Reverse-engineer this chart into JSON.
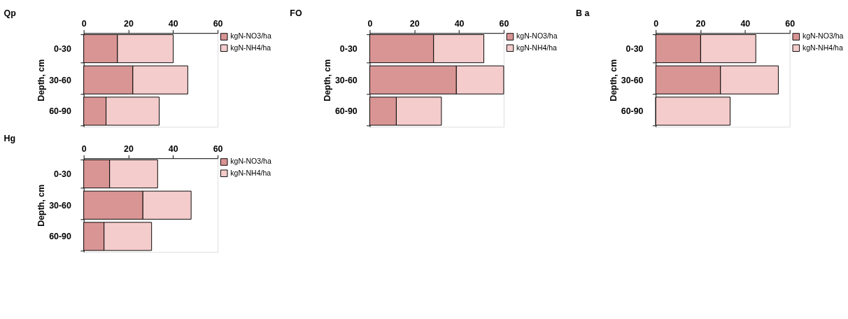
{
  "chart_data": [
    {
      "type": "bar",
      "orientation": "horizontal",
      "stacked": true,
      "title": "Qp",
      "ylabel": "Depth, cm",
      "categories": [
        "0-30",
        "30-60",
        "60-90"
      ],
      "series": [
        {
          "name": "kgN-NO3/ha",
          "color": "#d99594",
          "values": [
            15.1,
            22.0,
            10.0
          ]
        },
        {
          "name": "kgN-NH4/ha",
          "color": "#f4cccb",
          "values": [
            25.0,
            24.6,
            23.8
          ]
        }
      ],
      "xlim": [
        0,
        60
      ],
      "xticks": [
        0,
        20,
        40,
        60
      ],
      "legend": "right",
      "grid": false
    },
    {
      "type": "bar",
      "orientation": "horizontal",
      "stacked": true,
      "title": "FO",
      "ylabel": "Depth, cm",
      "categories": [
        "0-30",
        "30-60",
        "60-90"
      ],
      "series": [
        {
          "name": "kgN-NO3/ha",
          "color": "#d99594",
          "values": [
            28.6,
            38.8,
            11.9
          ]
        },
        {
          "name": "kgN-NH4/ha",
          "color": "#f4cccb",
          "values": [
            22.5,
            21.2,
            20.2
          ]
        }
      ],
      "xlim": [
        0,
        60
      ],
      "xticks": [
        0,
        20,
        40,
        60
      ],
      "legend": "right",
      "grid": false
    },
    {
      "type": "bar",
      "orientation": "horizontal",
      "stacked": true,
      "title": "B a",
      "ylabel": "Depth, cm",
      "categories": [
        "0-30",
        "30-60",
        "60-90"
      ],
      "series": [
        {
          "name": "kgN-NO3/ha",
          "color": "#d99594",
          "values": [
            20.1,
            29.0,
            0
          ]
        },
        {
          "name": "kgN-NH4/ha",
          "color": "#f4cccb",
          "values": [
            24.7,
            25.9,
            33.3
          ]
        }
      ],
      "xlim": [
        0,
        60
      ],
      "xticks": [
        0,
        20,
        40,
        60
      ],
      "legend": "right",
      "grid": false
    },
    {
      "type": "bar",
      "orientation": "horizontal",
      "stacked": true,
      "title": "Hg",
      "ylabel": "Depth, cm",
      "categories": [
        "0-30",
        "30-60",
        "60-90"
      ],
      "series": [
        {
          "name": "kgN-NO3/ha",
          "color": "#d99594",
          "values": [
            11.6,
            26.5,
            9.1
          ]
        },
        {
          "name": "kgN-NH4/ha",
          "color": "#f4cccb",
          "values": [
            21.5,
            21.6,
            21.3
          ]
        }
      ],
      "xlim": [
        0,
        60
      ],
      "xticks": [
        0,
        20,
        40,
        60
      ],
      "legend": "right",
      "grid": false
    }
  ]
}
